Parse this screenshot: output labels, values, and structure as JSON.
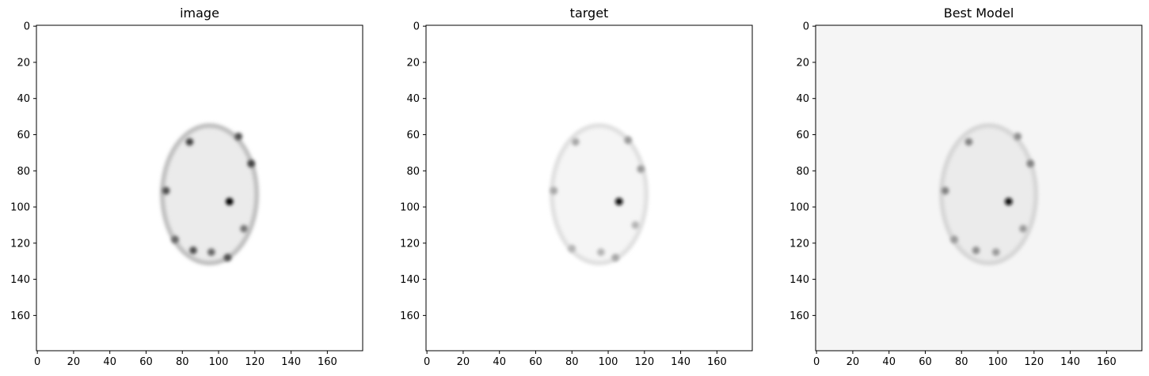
{
  "chart_data": [
    {
      "type": "heatmap",
      "title": "image",
      "colormap": "Greys",
      "image_size": [
        180,
        180
      ],
      "xlim": [
        0,
        179
      ],
      "ylim": [
        179,
        0
      ],
      "xticks": [
        0,
        20,
        40,
        60,
        80,
        100,
        120,
        140,
        160
      ],
      "yticks": [
        0,
        20,
        40,
        60,
        80,
        100,
        120,
        140,
        160
      ],
      "ring_intensity": 0.25,
      "interior_intensity": 0.08,
      "background_intensity": 0.0,
      "blobs": [
        {
          "x": 106,
          "y": 97,
          "intensity": 1.0
        },
        {
          "x": 84,
          "y": 64,
          "intensity": 0.75
        },
        {
          "x": 111,
          "y": 61,
          "intensity": 0.7
        },
        {
          "x": 118,
          "y": 76,
          "intensity": 0.75
        },
        {
          "x": 71,
          "y": 91,
          "intensity": 0.7
        },
        {
          "x": 76,
          "y": 118,
          "intensity": 0.6
        },
        {
          "x": 86,
          "y": 124,
          "intensity": 0.7
        },
        {
          "x": 96,
          "y": 125,
          "intensity": 0.6
        },
        {
          "x": 105,
          "y": 128,
          "intensity": 0.7
        },
        {
          "x": 114,
          "y": 112,
          "intensity": 0.55
        }
      ]
    },
    {
      "type": "heatmap",
      "title": "target",
      "colormap": "Greys",
      "image_size": [
        180,
        180
      ],
      "xlim": [
        0,
        179
      ],
      "ylim": [
        179,
        0
      ],
      "xticks": [
        0,
        20,
        40,
        60,
        80,
        100,
        120,
        140,
        160
      ],
      "yticks": [
        0,
        20,
        40,
        60,
        80,
        100,
        120,
        140,
        160
      ],
      "ring_intensity": 0.12,
      "interior_intensity": 0.04,
      "background_intensity": 0.0,
      "blobs": [
        {
          "x": 106,
          "y": 97,
          "intensity": 0.95
        },
        {
          "x": 82,
          "y": 64,
          "intensity": 0.35
        },
        {
          "x": 111,
          "y": 63,
          "intensity": 0.4
        },
        {
          "x": 118,
          "y": 79,
          "intensity": 0.4
        },
        {
          "x": 70,
          "y": 91,
          "intensity": 0.35
        },
        {
          "x": 80,
          "y": 123,
          "intensity": 0.3
        },
        {
          "x": 96,
          "y": 125,
          "intensity": 0.3
        },
        {
          "x": 104,
          "y": 128,
          "intensity": 0.35
        },
        {
          "x": 115,
          "y": 110,
          "intensity": 0.3
        }
      ]
    },
    {
      "type": "heatmap",
      "title": "Best Model",
      "colormap": "Greys",
      "image_size": [
        180,
        180
      ],
      "xlim": [
        0,
        179
      ],
      "ylim": [
        179,
        0
      ],
      "xticks": [
        0,
        20,
        40,
        60,
        80,
        100,
        120,
        140,
        160
      ],
      "yticks": [
        0,
        20,
        40,
        60,
        80,
        100,
        120,
        140,
        160
      ],
      "ring_intensity": 0.16,
      "interior_intensity": 0.08,
      "background_intensity": 0.04,
      "blobs": [
        {
          "x": 106,
          "y": 97,
          "intensity": 0.95
        },
        {
          "x": 84,
          "y": 64,
          "intensity": 0.5
        },
        {
          "x": 111,
          "y": 61,
          "intensity": 0.45
        },
        {
          "x": 118,
          "y": 76,
          "intensity": 0.5
        },
        {
          "x": 71,
          "y": 91,
          "intensity": 0.5
        },
        {
          "x": 76,
          "y": 118,
          "intensity": 0.4
        },
        {
          "x": 88,
          "y": 124,
          "intensity": 0.45
        },
        {
          "x": 99,
          "y": 125,
          "intensity": 0.4
        },
        {
          "x": 114,
          "y": 112,
          "intensity": 0.4
        }
      ]
    }
  ]
}
